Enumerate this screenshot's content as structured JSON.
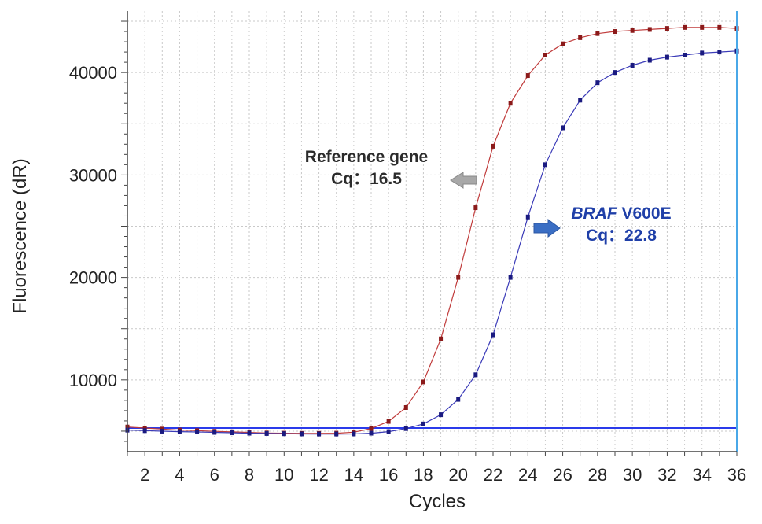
{
  "chart_data": {
    "type": "line",
    "title": "",
    "xlabel": "Cycles",
    "ylabel": "Fluorescence (dR)",
    "xlim": [
      1,
      36
    ],
    "ylim": [
      3000,
      46000
    ],
    "x_ticks": [
      2,
      4,
      6,
      8,
      10,
      12,
      14,
      16,
      18,
      20,
      22,
      24,
      26,
      28,
      30,
      32,
      34,
      36
    ],
    "y_ticks": [
      10000,
      20000,
      30000,
      40000
    ],
    "grid": true,
    "threshold": 5300,
    "threshold_color": "#2a3bea",
    "cursor_x": 36,
    "cursor_color": "#4aa8e8",
    "series": [
      {
        "color": "#c03b3b",
        "marker_color": "#8b1a1a",
        "x": [
          1,
          2,
          3,
          4,
          5,
          6,
          7,
          8,
          9,
          10,
          11,
          12,
          13,
          14,
          15,
          16,
          17,
          18,
          19,
          20,
          21,
          22,
          23,
          24,
          25,
          26,
          27,
          28,
          29,
          30,
          31,
          32,
          33,
          34,
          35,
          36
        ],
        "y": [
          5400,
          5300,
          5200,
          5100,
          5050,
          4980,
          4930,
          4870,
          4820,
          4800,
          4780,
          4780,
          4800,
          4900,
          5250,
          5950,
          7300,
          9800,
          14000,
          20000,
          26800,
          32800,
          37000,
          39700,
          41700,
          42800,
          43400,
          43800,
          44000,
          44100,
          44200,
          44300,
          44400,
          44400,
          44400,
          44300
        ]
      },
      {
        "color": "#3b3bb8",
        "marker_color": "#1a1a80",
        "x": [
          1,
          2,
          3,
          4,
          5,
          6,
          7,
          8,
          9,
          10,
          11,
          12,
          13,
          14,
          15,
          16,
          17,
          18,
          19,
          20,
          21,
          22,
          23,
          24,
          25,
          26,
          27,
          28,
          29,
          30,
          31,
          32,
          33,
          34,
          35,
          36
        ],
        "y": [
          5100,
          5050,
          5000,
          4950,
          4920,
          4880,
          4840,
          4800,
          4770,
          4750,
          4730,
          4720,
          4720,
          4730,
          4800,
          4950,
          5250,
          5700,
          6600,
          8100,
          10500,
          14400,
          20000,
          25900,
          31000,
          34600,
          37300,
          39000,
          40000,
          40700,
          41200,
          41500,
          41700,
          41900,
          42000,
          42100
        ]
      }
    ],
    "annotations": {
      "reference": {
        "line1": "Reference gene",
        "line2": "Cq：16.5",
        "arrow_color": "#a8a8a8"
      },
      "braf": {
        "gene": "BRAF",
        "mutation": " V600E",
        "line2": "Cq：22.8",
        "arrow_color": "#3a6ec4"
      }
    }
  }
}
